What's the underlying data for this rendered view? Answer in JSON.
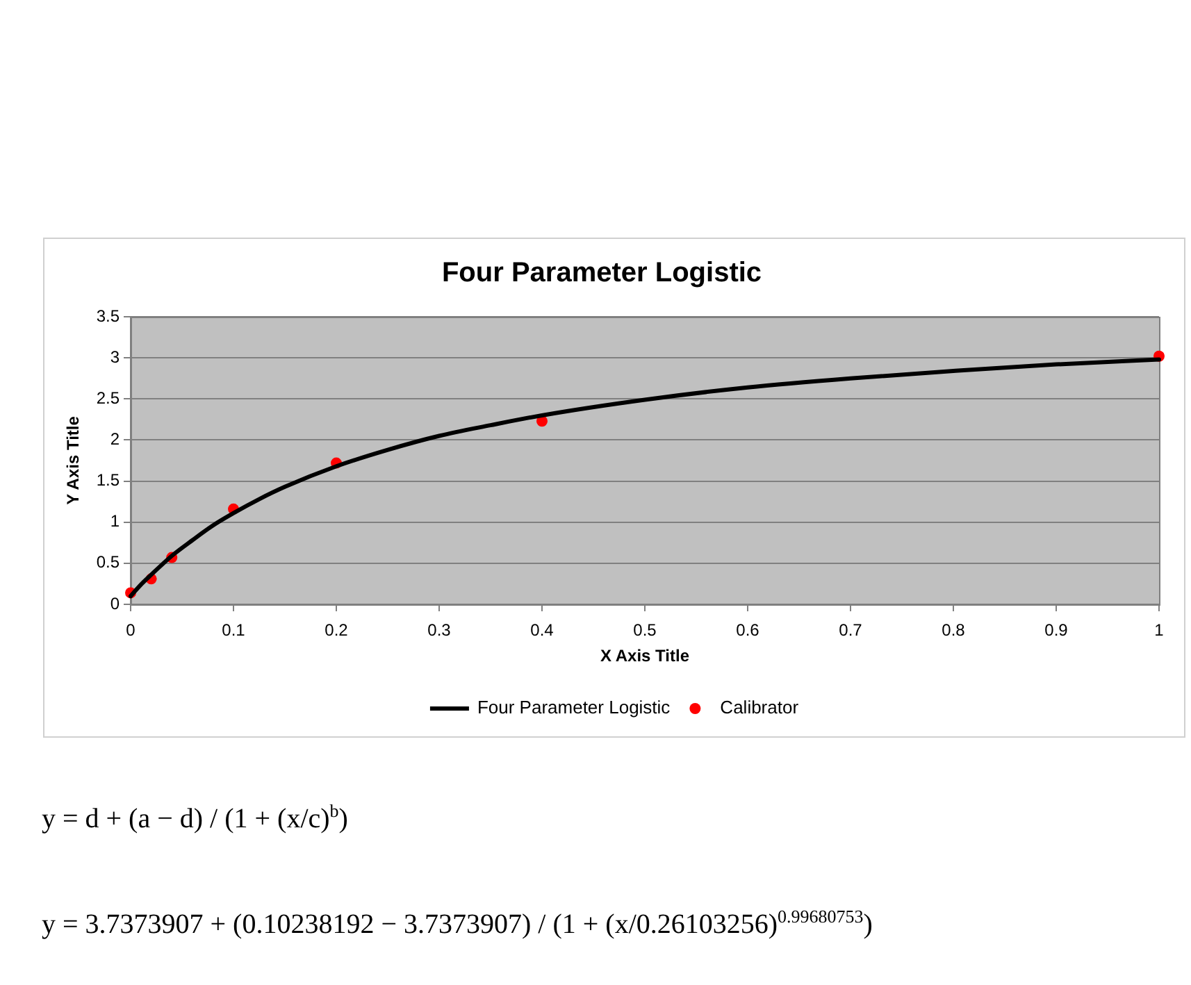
{
  "chart_data": {
    "type": "line",
    "title": "Four Parameter Logistic",
    "xlabel": "X Axis Title",
    "ylabel": "Y Axis Title",
    "series": [
      {
        "name": "Four Parameter Logistic",
        "color": "#000000",
        "marker": "none",
        "x": [
          0,
          0.01,
          0.02,
          0.04,
          0.06,
          0.08,
          0.1,
          0.125,
          0.15,
          0.2,
          0.25,
          0.3,
          0.35,
          0.4,
          0.5,
          0.6,
          0.7,
          0.8,
          0.9,
          1
        ],
        "values": [
          0.1,
          0.24,
          0.36,
          0.59,
          0.78,
          0.96,
          1.11,
          1.28,
          1.43,
          1.68,
          1.88,
          2.05,
          2.18,
          2.3,
          2.49,
          2.64,
          2.75,
          2.84,
          2.92,
          2.98
        ]
      },
      {
        "name": "Calibrator",
        "type": "scatter",
        "color": "#ff0000",
        "marker": "circle",
        "x": [
          0,
          0.02,
          0.04,
          0.1,
          0.2,
          0.4,
          1
        ],
        "values": [
          0.14,
          0.31,
          0.57,
          1.16,
          1.72,
          2.23,
          3.02
        ]
      }
    ],
    "xlim": [
      0,
      1
    ],
    "xticks": [
      0,
      0.1,
      0.2,
      0.3,
      0.4,
      0.5,
      0.6,
      0.7,
      0.8,
      0.9,
      1
    ],
    "ylim": [
      0,
      3.5
    ],
    "yticks": [
      0,
      0.5,
      1,
      1.5,
      2,
      2.5,
      3,
      3.5
    ],
    "grid": "y",
    "legend": "bottom",
    "annotations": [
      "y = d + (a − d) / (1 + (x/c)$^{b}$)",
      "y = 3.7373907 + (0.10238192 − 3.7373907) / (1 + (x/0.26103256)$^{0.99680753}$)"
    ]
  }
}
